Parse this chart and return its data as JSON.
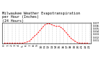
{
  "title": "Milwaukee Weather Evapotranspiration\nper Hour (Inches)\n(24 Hours)",
  "hours": [
    0,
    1,
    2,
    3,
    4,
    5,
    6,
    7,
    8,
    9,
    10,
    11,
    12,
    13,
    14,
    15,
    16,
    17,
    18,
    19,
    20,
    21,
    22,
    23
  ],
  "values": [
    0,
    0,
    0,
    0,
    0,
    0,
    0.003,
    0.008,
    0.022,
    0.033,
    0.048,
    0.063,
    0.068,
    0.063,
    0.058,
    0.058,
    0.048,
    0.033,
    0.018,
    0.008,
    0.001,
    0,
    0,
    0
  ],
  "line_color": "#ff0000",
  "bg_color": "#ffffff",
  "grid_color": "#aaaaaa",
  "ylim": [
    0,
    0.07
  ],
  "ytick_vals": [
    0.01,
    0.02,
    0.03,
    0.04,
    0.05,
    0.06,
    0.07
  ],
  "title_fontsize": 3.8,
  "tick_fontsize": 3.2,
  "linewidth": 0.7
}
